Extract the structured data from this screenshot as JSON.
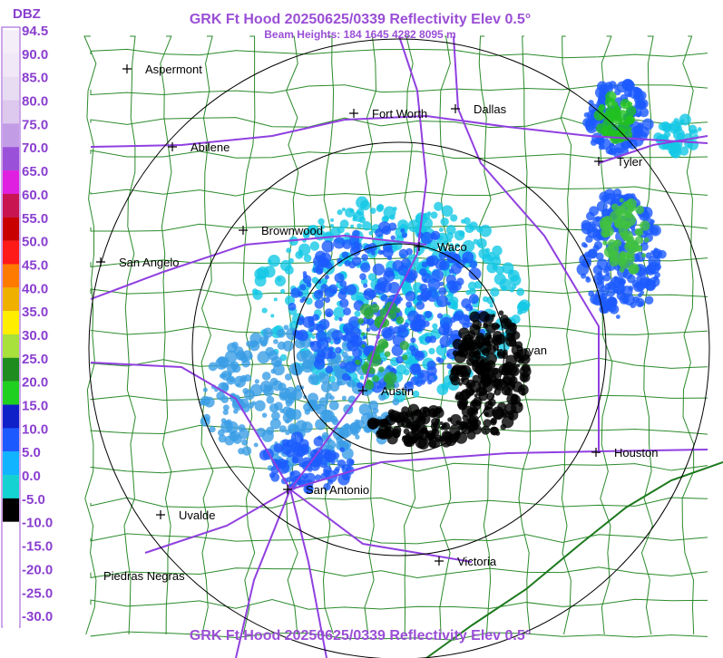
{
  "header": {
    "title": "GRK Ft Hood 20250625/0339 Reflectivity Elev 0.5°",
    "subtitle": "Beam Heights: 184 1645 4282 8095 m"
  },
  "legend": {
    "unit": "DBZ",
    "items": [
      {
        "label": "94.5",
        "color": "#f4eef8"
      },
      {
        "label": "90.0",
        "color": "#f0e8f6"
      },
      {
        "label": "85.0",
        "color": "#e8dcf2"
      },
      {
        "label": "80.0",
        "color": "#ddc8ee"
      },
      {
        "label": "75.0",
        "color": "#c39ce6"
      },
      {
        "label": "70.0",
        "color": "#9a50d8"
      },
      {
        "label": "65.0",
        "color": "#e020e0"
      },
      {
        "label": "60.0",
        "color": "#c81450"
      },
      {
        "label": "55.0",
        "color": "#c80000"
      },
      {
        "label": "50.0",
        "color": "#ff1a1a"
      },
      {
        "label": "45.0",
        "color": "#ff7a00"
      },
      {
        "label": "40.0",
        "color": "#f0b000"
      },
      {
        "label": "35.0",
        "color": "#ffee00"
      },
      {
        "label": "30.0",
        "color": "#a8e03c"
      },
      {
        "label": "25.0",
        "color": "#1e8c1e"
      },
      {
        "label": "20.0",
        "color": "#20d020"
      },
      {
        "label": "15.0",
        "color": "#1020c8"
      },
      {
        "label": "10.0",
        "color": "#1c5aff"
      },
      {
        "label": "5.0",
        "color": "#10b4ff"
      },
      {
        "label": "0.0",
        "color": "#14d2d2"
      },
      {
        "label": "-5.0",
        "color": "#000000"
      },
      {
        "label": "-10.0",
        "color": "#ffffff"
      },
      {
        "label": "-15.0",
        "color": "#ffffff"
      },
      {
        "label": "-20.0",
        "color": "#ffffff"
      },
      {
        "label": "-25.0",
        "color": "#ffffff"
      },
      {
        "label": "-30.0",
        "color": "#ffffff"
      }
    ]
  },
  "cities": [
    "Aspermont",
    "Abilene",
    "Fort Worth",
    "Dallas",
    "Tyler",
    "Brownwood",
    "Waco",
    "San Angelo",
    "Bryan",
    "Austin",
    "Houston",
    "San Antonio",
    "Uvalde",
    "Victoria",
    "Piedras Negras"
  ]
}
